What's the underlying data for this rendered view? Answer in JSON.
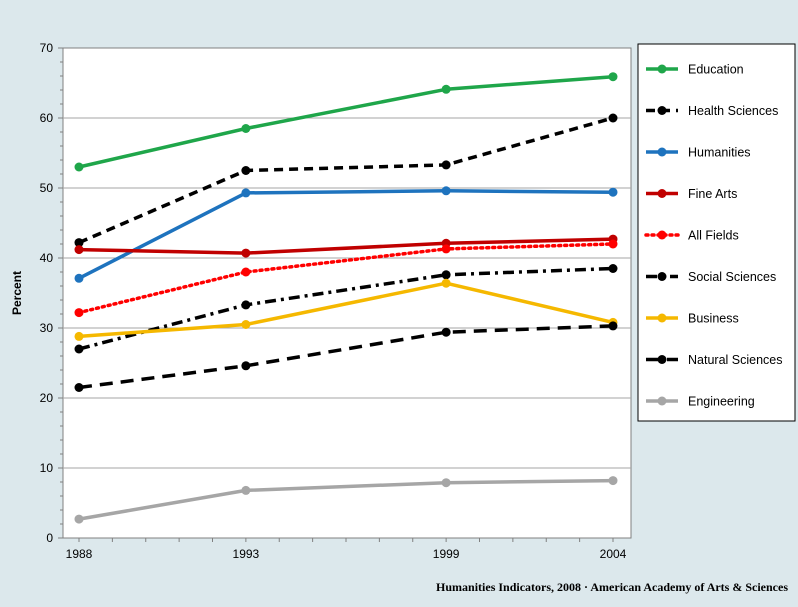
{
  "chart_data": {
    "type": "line",
    "x": [
      1988,
      1993,
      1999,
      2004
    ],
    "x_tick_labels": [
      "1988",
      "1993",
      "1999",
      "2004"
    ],
    "ylabel": "Percent",
    "ylim": [
      0,
      70
    ],
    "y_ticks": [
      0,
      10,
      20,
      30,
      40,
      50,
      60,
      70
    ],
    "grid": "horizontal",
    "legend_placement": "right",
    "series": [
      {
        "name": "Education",
        "values": [
          53.0,
          58.5,
          64.1,
          65.9
        ],
        "color": "#1fa64a",
        "style": "solid"
      },
      {
        "name": "Health Sciences",
        "values": [
          42.2,
          52.5,
          53.3,
          60.0
        ],
        "color": "#000000",
        "style": "dash"
      },
      {
        "name": "Humanities",
        "values": [
          37.1,
          49.3,
          49.6,
          49.4
        ],
        "color": "#1e73be",
        "style": "solid"
      },
      {
        "name": "Fine Arts",
        "values": [
          41.2,
          40.7,
          42.1,
          42.7
        ],
        "color": "#c00000",
        "style": "solid"
      },
      {
        "name": "All Fields",
        "values": [
          32.2,
          38.0,
          41.3,
          42.0
        ],
        "color": "#ff0000",
        "style": "dot"
      },
      {
        "name": "Social Sciences",
        "values": [
          27.0,
          33.3,
          37.6,
          38.5
        ],
        "color": "#000000",
        "style": "dashdot"
      },
      {
        "name": "Business",
        "values": [
          28.8,
          30.5,
          36.4,
          30.8
        ],
        "color": "#f5b800",
        "style": "solid"
      },
      {
        "name": "Natural Sciences",
        "values": [
          21.5,
          24.6,
          29.4,
          30.3
        ],
        "color": "#000000",
        "style": "longdash"
      },
      {
        "name": "Engineering",
        "values": [
          2.7,
          6.8,
          7.9,
          8.2
        ],
        "color": "#a6a6a6",
        "style": "solid"
      }
    ]
  },
  "credit": "Humanities  Indicators, 2008 · American Academy of Arts & Sciences"
}
